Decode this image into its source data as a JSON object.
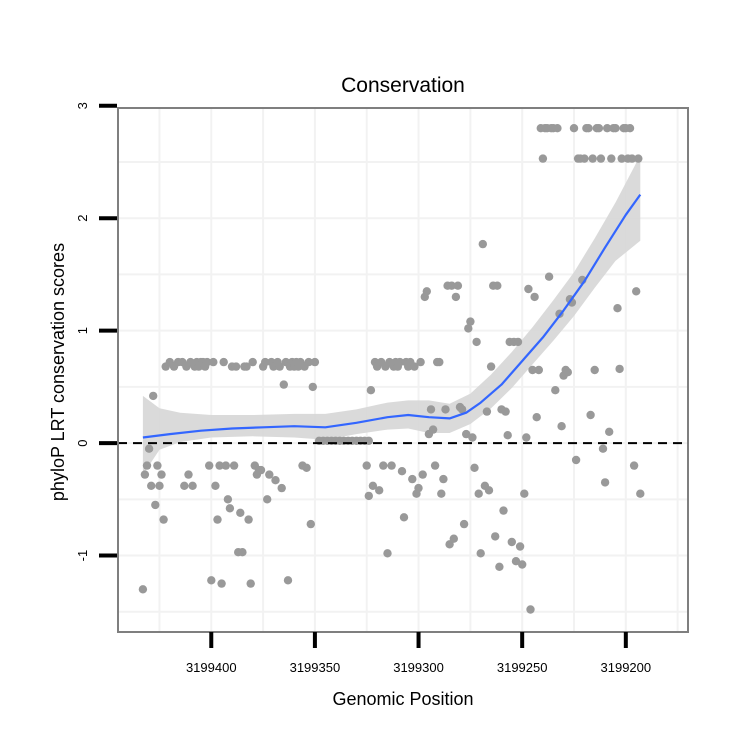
{
  "chart_data": {
    "type": "scatter",
    "title": "Conservation",
    "xlabel": "Genomic Position",
    "ylabel": "phyloP LRT conservation scores",
    "x_reversed": true,
    "xlim": [
      3199445,
      3199170
    ],
    "ylim": [
      -1.68,
      2.98
    ],
    "x_ticks": [
      3199400,
      3199350,
      3199300,
      3199250,
      3199200
    ],
    "x_tick_labels": [
      "3199400",
      "3199350",
      "3199300",
      "3199250",
      "3199200"
    ],
    "y_ticks": [
      -1,
      0,
      1,
      2,
      3
    ],
    "y_tick_labels": [
      "-1",
      "0",
      "1",
      "2",
      "3"
    ],
    "reference_line": {
      "y": 0,
      "style": "dashed"
    },
    "colors": {
      "points": "#999999",
      "smooth": "#3366ff",
      "ribbon": "#d6d6d6",
      "panel_border": "#7f7f7f",
      "grid": "#f2f2f2"
    },
    "points": [
      [
        3199433,
        -1.3
      ],
      [
        3199432,
        -0.28
      ],
      [
        3199431,
        -0.2
      ],
      [
        3199430,
        -0.05
      ],
      [
        3199429,
        -0.38
      ],
      [
        3199428,
        0.42
      ],
      [
        3199427,
        -0.55
      ],
      [
        3199426,
        -0.2
      ],
      [
        3199425,
        -0.38
      ],
      [
        3199424,
        -0.28
      ],
      [
        3199423,
        -0.68
      ],
      [
        3199422,
        0.68
      ],
      [
        3199420,
        0.72
      ],
      [
        3199418,
        0.68
      ],
      [
        3199416,
        0.72
      ],
      [
        3199414,
        0.72
      ],
      [
        3199413,
        -0.38
      ],
      [
        3199412,
        0.68
      ],
      [
        3199411,
        -0.28
      ],
      [
        3199410,
        0.72
      ],
      [
        3199409,
        -0.38
      ],
      [
        3199408,
        0.68
      ],
      [
        3199407,
        0.72
      ],
      [
        3199406,
        0.68
      ],
      [
        3199405,
        0.72
      ],
      [
        3199404,
        0.72
      ],
      [
        3199403,
        0.68
      ],
      [
        3199402,
        0.72
      ],
      [
        3199401,
        -0.2
      ],
      [
        3199400,
        -1.22
      ],
      [
        3199399,
        0.72
      ],
      [
        3199398,
        -0.38
      ],
      [
        3199397,
        -0.68
      ],
      [
        3199396,
        -0.2
      ],
      [
        3199395,
        -1.25
      ],
      [
        3199394,
        0.72
      ],
      [
        3199393,
        -0.2
      ],
      [
        3199392,
        -0.5
      ],
      [
        3199391,
        -0.58
      ],
      [
        3199390,
        0.68
      ],
      [
        3199389,
        -0.2
      ],
      [
        3199388,
        0.68
      ],
      [
        3199387,
        -0.97
      ],
      [
        3199386,
        -0.62
      ],
      [
        3199385,
        -0.97
      ],
      [
        3199384,
        0.68
      ],
      [
        3199383,
        0.68
      ],
      [
        3199382,
        -0.68
      ],
      [
        3199381,
        -1.25
      ],
      [
        3199380,
        0.72
      ],
      [
        3199379,
        -0.2
      ],
      [
        3199378,
        -0.28
      ],
      [
        3199377,
        -0.24
      ],
      [
        3199376,
        -0.24
      ],
      [
        3199375,
        0.68
      ],
      [
        3199374,
        0.72
      ],
      [
        3199373,
        -0.5
      ],
      [
        3199372,
        -0.28
      ],
      [
        3199371,
        0.72
      ],
      [
        3199370,
        0.68
      ],
      [
        3199369,
        -0.33
      ],
      [
        3199368,
        0.72
      ],
      [
        3199367,
        0.68
      ],
      [
        3199366,
        -0.4
      ],
      [
        3199365,
        0.52
      ],
      [
        3199364,
        0.72
      ],
      [
        3199363,
        -1.22
      ],
      [
        3199362,
        0.68
      ],
      [
        3199361,
        0.72
      ],
      [
        3199360,
        0.68
      ],
      [
        3199359,
        0.72
      ],
      [
        3199358,
        0.68
      ],
      [
        3199357,
        0.72
      ],
      [
        3199356,
        -0.2
      ],
      [
        3199355,
        0.68
      ],
      [
        3199354,
        -0.22
      ],
      [
        3199353,
        0.72
      ],
      [
        3199352,
        -0.72
      ],
      [
        3199351,
        0.5
      ],
      [
        3199350,
        0.72
      ],
      [
        3199348,
        0.02
      ],
      [
        3199346,
        0.02
      ],
      [
        3199344,
        0.02
      ],
      [
        3199342,
        0.02
      ],
      [
        3199340,
        0.02
      ],
      [
        3199338,
        0.02
      ],
      [
        3199336,
        0.02
      ],
      [
        3199334,
        0.02
      ],
      [
        3199332,
        0.02
      ],
      [
        3199330,
        0.02
      ],
      [
        3199328,
        0.02
      ],
      [
        3199326,
        0.02
      ],
      [
        3199324,
        0.02
      ],
      [
        3199325,
        -0.2
      ],
      [
        3199324,
        -0.47
      ],
      [
        3199323,
        0.47
      ],
      [
        3199322,
        -0.38
      ],
      [
        3199321,
        0.72
      ],
      [
        3199320,
        0.68
      ],
      [
        3199319,
        -0.42
      ],
      [
        3199318,
        0.72
      ],
      [
        3199317,
        -0.2
      ],
      [
        3199316,
        0.68
      ],
      [
        3199315,
        -0.98
      ],
      [
        3199314,
        0.72
      ],
      [
        3199313,
        -0.2
      ],
      [
        3199312,
        0.68
      ],
      [
        3199311,
        0.72
      ],
      [
        3199310,
        0.68
      ],
      [
        3199309,
        0.72
      ],
      [
        3199308,
        -0.25
      ],
      [
        3199307,
        -0.66
      ],
      [
        3199306,
        0.72
      ],
      [
        3199305,
        0.68
      ],
      [
        3199304,
        0.72
      ],
      [
        3199303,
        -0.32
      ],
      [
        3199302,
        0.68
      ],
      [
        3199301,
        -0.45
      ],
      [
        3199300,
        -0.4
      ],
      [
        3199299,
        0.72
      ],
      [
        3199298,
        -0.28
      ],
      [
        3199297,
        1.3
      ],
      [
        3199296,
        1.35
      ],
      [
        3199295,
        0.08
      ],
      [
        3199294,
        0.3
      ],
      [
        3199293,
        0.12
      ],
      [
        3199292,
        -0.2
      ],
      [
        3199291,
        0.72
      ],
      [
        3199290,
        0.72
      ],
      [
        3199289,
        -0.45
      ],
      [
        3199288,
        -0.32
      ],
      [
        3199287,
        0.3
      ],
      [
        3199286,
        1.4
      ],
      [
        3199285,
        -0.9
      ],
      [
        3199284,
        1.4
      ],
      [
        3199283,
        -0.85
      ],
      [
        3199282,
        1.3
      ],
      [
        3199281,
        1.4
      ],
      [
        3199280,
        0.32
      ],
      [
        3199279,
        0.3
      ],
      [
        3199278,
        -0.72
      ],
      [
        3199277,
        0.08
      ],
      [
        3199276,
        1.02
      ],
      [
        3199275,
        1.08
      ],
      [
        3199274,
        0.05
      ],
      [
        3199273,
        -0.22
      ],
      [
        3199272,
        0.9
      ],
      [
        3199271,
        -0.45
      ],
      [
        3199270,
        -0.98
      ],
      [
        3199269,
        1.77
      ],
      [
        3199268,
        -0.38
      ],
      [
        3199267,
        0.28
      ],
      [
        3199266,
        -0.42
      ],
      [
        3199265,
        0.68
      ],
      [
        3199264,
        1.4
      ],
      [
        3199263,
        -0.83
      ],
      [
        3199262,
        1.4
      ],
      [
        3199261,
        -1.1
      ],
      [
        3199260,
        0.3
      ],
      [
        3199259,
        -0.6
      ],
      [
        3199258,
        0.28
      ],
      [
        3199257,
        0.07
      ],
      [
        3199256,
        0.9
      ],
      [
        3199255,
        -0.88
      ],
      [
        3199254,
        0.9
      ],
      [
        3199253,
        -1.05
      ],
      [
        3199252,
        0.9
      ],
      [
        3199251,
        -0.92
      ],
      [
        3199250,
        -1.08
      ],
      [
        3199249,
        -0.45
      ],
      [
        3199248,
        0.05
      ],
      [
        3199247,
        1.37
      ],
      [
        3199246,
        -1.48
      ],
      [
        3199245,
        0.65
      ],
      [
        3199244,
        1.3
      ],
      [
        3199243,
        0.23
      ],
      [
        3199242,
        0.65
      ],
      [
        3199241,
        2.8
      ],
      [
        3199240,
        2.53
      ],
      [
        3199239,
        2.8
      ],
      [
        3199238,
        2.8
      ],
      [
        3199237,
        1.48
      ],
      [
        3199236,
        2.8
      ],
      [
        3199235,
        2.8
      ],
      [
        3199234,
        0.47
      ],
      [
        3199233,
        2.8
      ],
      [
        3199232,
        1.15
      ],
      [
        3199231,
        0.15
      ],
      [
        3199230,
        0.6
      ],
      [
        3199229,
        0.65
      ],
      [
        3199228,
        0.63
      ],
      [
        3199227,
        1.28
      ],
      [
        3199226,
        1.25
      ],
      [
        3199225,
        2.8
      ],
      [
        3199224,
        -0.15
      ],
      [
        3199223,
        2.53
      ],
      [
        3199222,
        2.53
      ],
      [
        3199221,
        1.45
      ],
      [
        3199220,
        2.53
      ],
      [
        3199219,
        2.8
      ],
      [
        3199218,
        2.8
      ],
      [
        3199217,
        0.25
      ],
      [
        3199216,
        2.53
      ],
      [
        3199215,
        0.65
      ],
      [
        3199214,
        2.8
      ],
      [
        3199213,
        2.8
      ],
      [
        3199212,
        2.53
      ],
      [
        3199211,
        -0.05
      ],
      [
        3199210,
        -0.35
      ],
      [
        3199209,
        2.8
      ],
      [
        3199208,
        0.1
      ],
      [
        3199207,
        2.53
      ],
      [
        3199206,
        2.8
      ],
      [
        3199205,
        2.8
      ],
      [
        3199204,
        1.2
      ],
      [
        3199203,
        0.66
      ],
      [
        3199202,
        2.53
      ],
      [
        3199201,
        2.8
      ],
      [
        3199200,
        2.8
      ],
      [
        3199199,
        2.53
      ],
      [
        3199198,
        2.8
      ],
      [
        3199197,
        2.53
      ],
      [
        3199196,
        -0.2
      ],
      [
        3199195,
        1.35
      ],
      [
        3199194,
        2.53
      ],
      [
        3199193,
        -0.45
      ]
    ],
    "smooth_line": [
      [
        3199433,
        0.05
      ],
      [
        3199420,
        0.08
      ],
      [
        3199405,
        0.11
      ],
      [
        3199390,
        0.13
      ],
      [
        3199375,
        0.14
      ],
      [
        3199360,
        0.15
      ],
      [
        3199345,
        0.14
      ],
      [
        3199330,
        0.18
      ],
      [
        3199315,
        0.23
      ],
      [
        3199305,
        0.25
      ],
      [
        3199295,
        0.23
      ],
      [
        3199285,
        0.22
      ],
      [
        3199277,
        0.27
      ],
      [
        3199270,
        0.36
      ],
      [
        3199260,
        0.52
      ],
      [
        3199250,
        0.73
      ],
      [
        3199240,
        0.94
      ],
      [
        3199230,
        1.18
      ],
      [
        3199220,
        1.44
      ],
      [
        3199210,
        1.74
      ],
      [
        3199200,
        2.03
      ],
      [
        3199193,
        2.21
      ]
    ],
    "ribbon": [
      [
        3199433,
        -0.28,
        0.42
      ],
      [
        3199425,
        -0.06,
        0.31
      ],
      [
        3199415,
        0.01,
        0.27
      ],
      [
        3199400,
        0.05,
        0.25
      ],
      [
        3199380,
        0.06,
        0.25
      ],
      [
        3199360,
        0.05,
        0.26
      ],
      [
        3199345,
        0.03,
        0.26
      ],
      [
        3199330,
        0.08,
        0.3
      ],
      [
        3199315,
        0.12,
        0.36
      ],
      [
        3199305,
        0.13,
        0.38
      ],
      [
        3199295,
        0.09,
        0.38
      ],
      [
        3199285,
        0.09,
        0.35
      ],
      [
        3199275,
        0.17,
        0.44
      ],
      [
        3199265,
        0.31,
        0.61
      ],
      [
        3199255,
        0.49,
        0.81
      ],
      [
        3199245,
        0.7,
        1.03
      ],
      [
        3199235,
        0.91,
        1.27
      ],
      [
        3199225,
        1.13,
        1.52
      ],
      [
        3199215,
        1.38,
        1.82
      ],
      [
        3199205,
        1.62,
        2.14
      ],
      [
        3199193,
        1.8,
        2.56
      ]
    ]
  }
}
